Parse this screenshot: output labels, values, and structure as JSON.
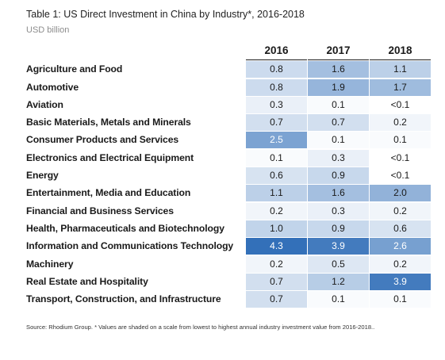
{
  "title": "Table 1: US Direct Investment in China by Industry*, 2016-2018",
  "unit": "USD billion",
  "source": "Source: Rhodium Group. * Values are shaded on a scale from lowest to highest annual industry investment value from 2016-2018..",
  "colors": {
    "scale_low": "#ffffff",
    "scale_high": "#3370b9"
  },
  "chart_data": {
    "type": "heatmap",
    "title": "Table 1: US Direct Investment in China by Industry*, 2016-2018",
    "unit": "USD billion",
    "columns": [
      "2016",
      "2017",
      "2018"
    ],
    "rows": [
      {
        "label": "Agriculture and Food",
        "values": [
          "0.8",
          "1.6",
          "1.1"
        ],
        "num": [
          0.8,
          1.6,
          1.1
        ]
      },
      {
        "label": "Automotive",
        "values": [
          "0.8",
          "1.9",
          "1.7"
        ],
        "num": [
          0.8,
          1.9,
          1.7
        ]
      },
      {
        "label": "Aviation",
        "values": [
          "0.3",
          "0.1",
          "<0.1"
        ],
        "num": [
          0.3,
          0.1,
          0.05
        ]
      },
      {
        "label": "Basic Materials, Metals and Minerals",
        "values": [
          "0.7",
          "0.7",
          "0.2"
        ],
        "num": [
          0.7,
          0.7,
          0.2
        ]
      },
      {
        "label": "Consumer Products and Services",
        "values": [
          "2.5",
          "0.1",
          "0.1"
        ],
        "num": [
          2.5,
          0.1,
          0.1
        ]
      },
      {
        "label": "Electronics and Electrical Equipment",
        "values": [
          "0.1",
          "0.3",
          "<0.1"
        ],
        "num": [
          0.1,
          0.3,
          0.05
        ]
      },
      {
        "label": "Energy",
        "values": [
          "0.6",
          "0.9",
          "<0.1"
        ],
        "num": [
          0.6,
          0.9,
          0.05
        ]
      },
      {
        "label": "Entertainment, Media and Education",
        "values": [
          "1.1",
          "1.6",
          "2.0"
        ],
        "num": [
          1.1,
          1.6,
          2.0
        ]
      },
      {
        "label": "Financial and Business Services",
        "values": [
          "0.2",
          "0.3",
          "0.2"
        ],
        "num": [
          0.2,
          0.3,
          0.2
        ]
      },
      {
        "label": "Health, Pharmaceuticals and Biotechnology",
        "values": [
          "1.0",
          "0.9",
          "0.6"
        ],
        "num": [
          1.0,
          0.9,
          0.6
        ]
      },
      {
        "label": "Information and Communications Technology",
        "values": [
          "4.3",
          "3.9",
          "2.6"
        ],
        "num": [
          4.3,
          3.9,
          2.6
        ]
      },
      {
        "label": "Machinery",
        "values": [
          "0.2",
          "0.5",
          "0.2"
        ],
        "num": [
          0.2,
          0.5,
          0.2
        ]
      },
      {
        "label": "Real Estate and Hospitality",
        "values": [
          "0.7",
          "1.2",
          "3.9"
        ],
        "num": [
          0.7,
          1.2,
          3.9
        ]
      },
      {
        "label": "Transport, Construction, and Infrastructure",
        "values": [
          "0.7",
          "0.1",
          "0.1"
        ],
        "num": [
          0.7,
          0.1,
          0.1
        ]
      }
    ]
  }
}
